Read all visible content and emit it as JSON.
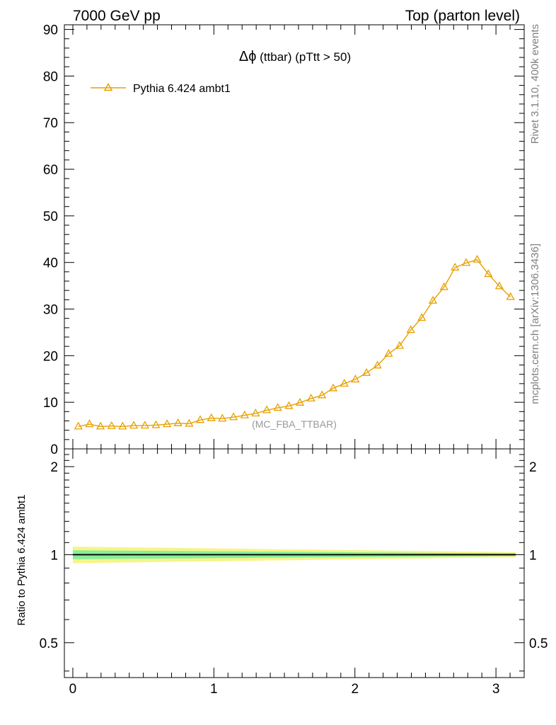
{
  "header": {
    "left": "7000 GeV pp",
    "right": "Top (parton level)"
  },
  "side_labels": {
    "rivet": "Rivet 3.1.10,  400k events",
    "mcplots": "mcplots.cern.ch [arXiv:1306.3436]"
  },
  "colors": {
    "series": "#e8a000",
    "band_outer": "#f5f58a",
    "band_inner": "#88ee99",
    "ratio_line": "#000000"
  },
  "chart_data": [
    {
      "type": "line",
      "title": "Δϕ (ttbar) (pTtt > 50)",
      "title_symbol": "Δϕ",
      "title_text": " (ttbar) (pTtt > 50)",
      "watermark": "(MC_FBA_TTBAR)",
      "legend_position": "top-left",
      "xlim": [
        -0.06,
        3.2
      ],
      "ylim": [
        0,
        91
      ],
      "y_ticks": [
        0,
        10,
        20,
        30,
        40,
        50,
        60,
        70,
        80,
        90
      ],
      "series": [
        {
          "name": "Pythia 6.424 ambt1",
          "marker": "open-triangle",
          "x": [
            0.039,
            0.118,
            0.196,
            0.275,
            0.353,
            0.432,
            0.511,
            0.589,
            0.668,
            0.746,
            0.825,
            0.903,
            0.982,
            1.06,
            1.139,
            1.218,
            1.296,
            1.375,
            1.453,
            1.532,
            1.61,
            1.689,
            1.767,
            1.846,
            1.925,
            2.003,
            2.082,
            2.16,
            2.239,
            2.317,
            2.396,
            2.474,
            2.553,
            2.632,
            2.71,
            2.789,
            2.867,
            2.946,
            3.024,
            3.103
          ],
          "y": [
            4.8,
            5.3,
            4.8,
            4.9,
            4.8,
            5.0,
            5.0,
            5.1,
            5.3,
            5.5,
            5.4,
            6.2,
            6.6,
            6.5,
            6.8,
            7.2,
            7.6,
            8.3,
            8.8,
            9.2,
            9.9,
            10.8,
            11.5,
            13.0,
            14.0,
            14.9,
            16.3,
            17.9,
            20.4,
            22.1,
            25.5,
            28.1,
            31.8,
            34.7,
            38.9,
            39.9,
            40.6,
            37.5,
            34.9,
            32.6
          ]
        }
      ]
    },
    {
      "type": "line",
      "ylabel": "Ratio to Pythia 6.424 ambt1",
      "xlim": [
        -0.06,
        3.2
      ],
      "ylim": [
        0.38,
        2.3
      ],
      "log_y": true,
      "x_ticks": [
        0,
        1,
        2,
        3
      ],
      "y_ticks": [
        0.5,
        1,
        2
      ],
      "series": [
        {
          "name": "Pythia 6.424 ambt1",
          "x": [
            0.0,
            3.14
          ],
          "y": [
            1.0,
            1.0
          ]
        }
      ]
    }
  ]
}
